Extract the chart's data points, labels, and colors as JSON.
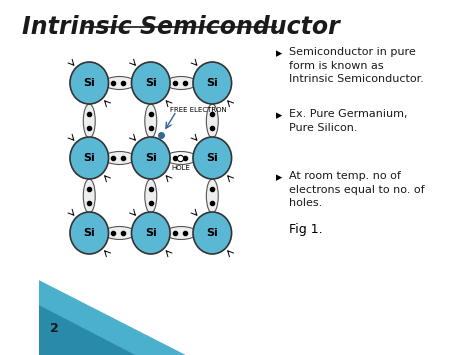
{
  "title": "Intrinsic Semiconductor",
  "background_color": "#ffffff",
  "title_color": "#1a1a1a",
  "title_fontsize": 17,
  "si_color": "#5bb8d4",
  "si_border_color": "#333333",
  "si_label": "Si",
  "bullet_points": [
    "Semiconductor in pure\nform is known as\nIntrinsic Semiconductor.",
    "Ex. Pure Germanium,\nPure Silicon.",
    "At room temp. no of\nelectrons equal to no. of\nholes."
  ],
  "fig_label": "Fig 1.",
  "page_number": "2",
  "bullet_color": "#1a1a1a",
  "bullet_fontsize": 8.0,
  "annotation_free_electron": "FREE ELECTRON",
  "annotation_hole": "HOLE",
  "bond_color": "#eeeeee",
  "bond_edge": "#555555",
  "corner_color_1": "#4ab0cc",
  "corner_color_2": "#2a8aaa"
}
